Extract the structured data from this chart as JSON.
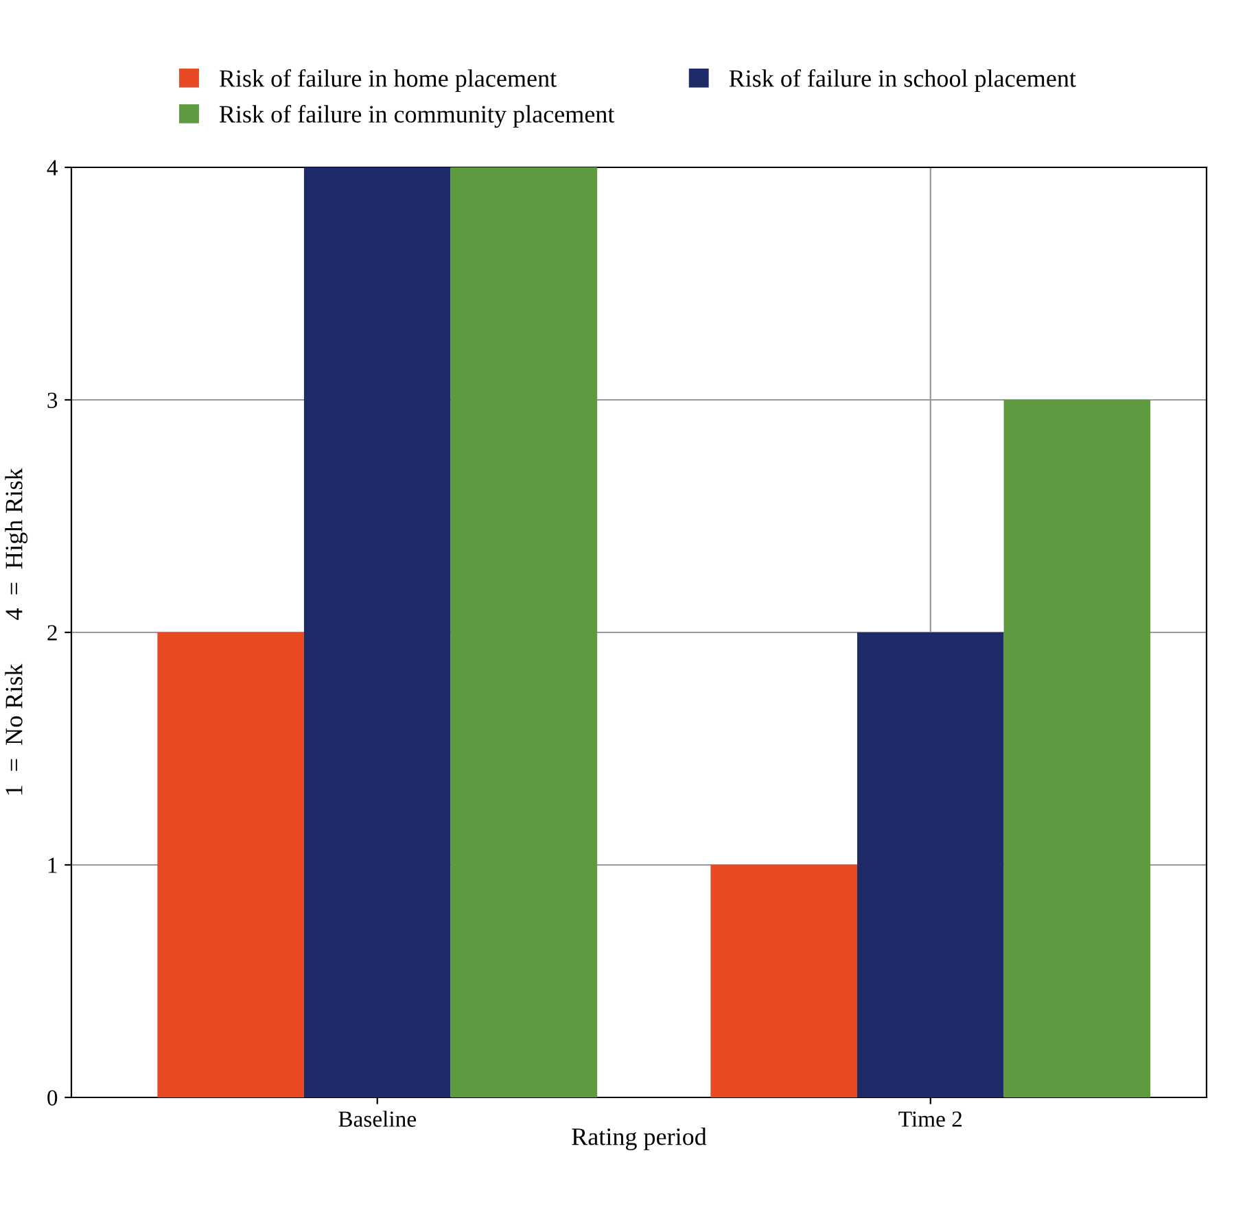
{
  "chart_data": {
    "type": "bar",
    "xlabel": "Rating period",
    "ylabel": "1  =  No Risk       4  =  High Risk",
    "categories": [
      "Baseline",
      "Time 2"
    ],
    "series": [
      {
        "name": "Risk of failure in home placement",
        "color": "#e84a23",
        "values": [
          2,
          1
        ]
      },
      {
        "name": "Risk of failure in school placement",
        "color": "#1f2a68",
        "values": [
          4,
          2
        ]
      },
      {
        "name": "Risk of failure in community placement",
        "color": "#5e9a3f",
        "values": [
          4,
          3
        ]
      }
    ],
    "ylim": [
      0,
      4
    ],
    "yticks": [
      0,
      1,
      2,
      3,
      4
    ],
    "grid": true,
    "legend": "top"
  }
}
